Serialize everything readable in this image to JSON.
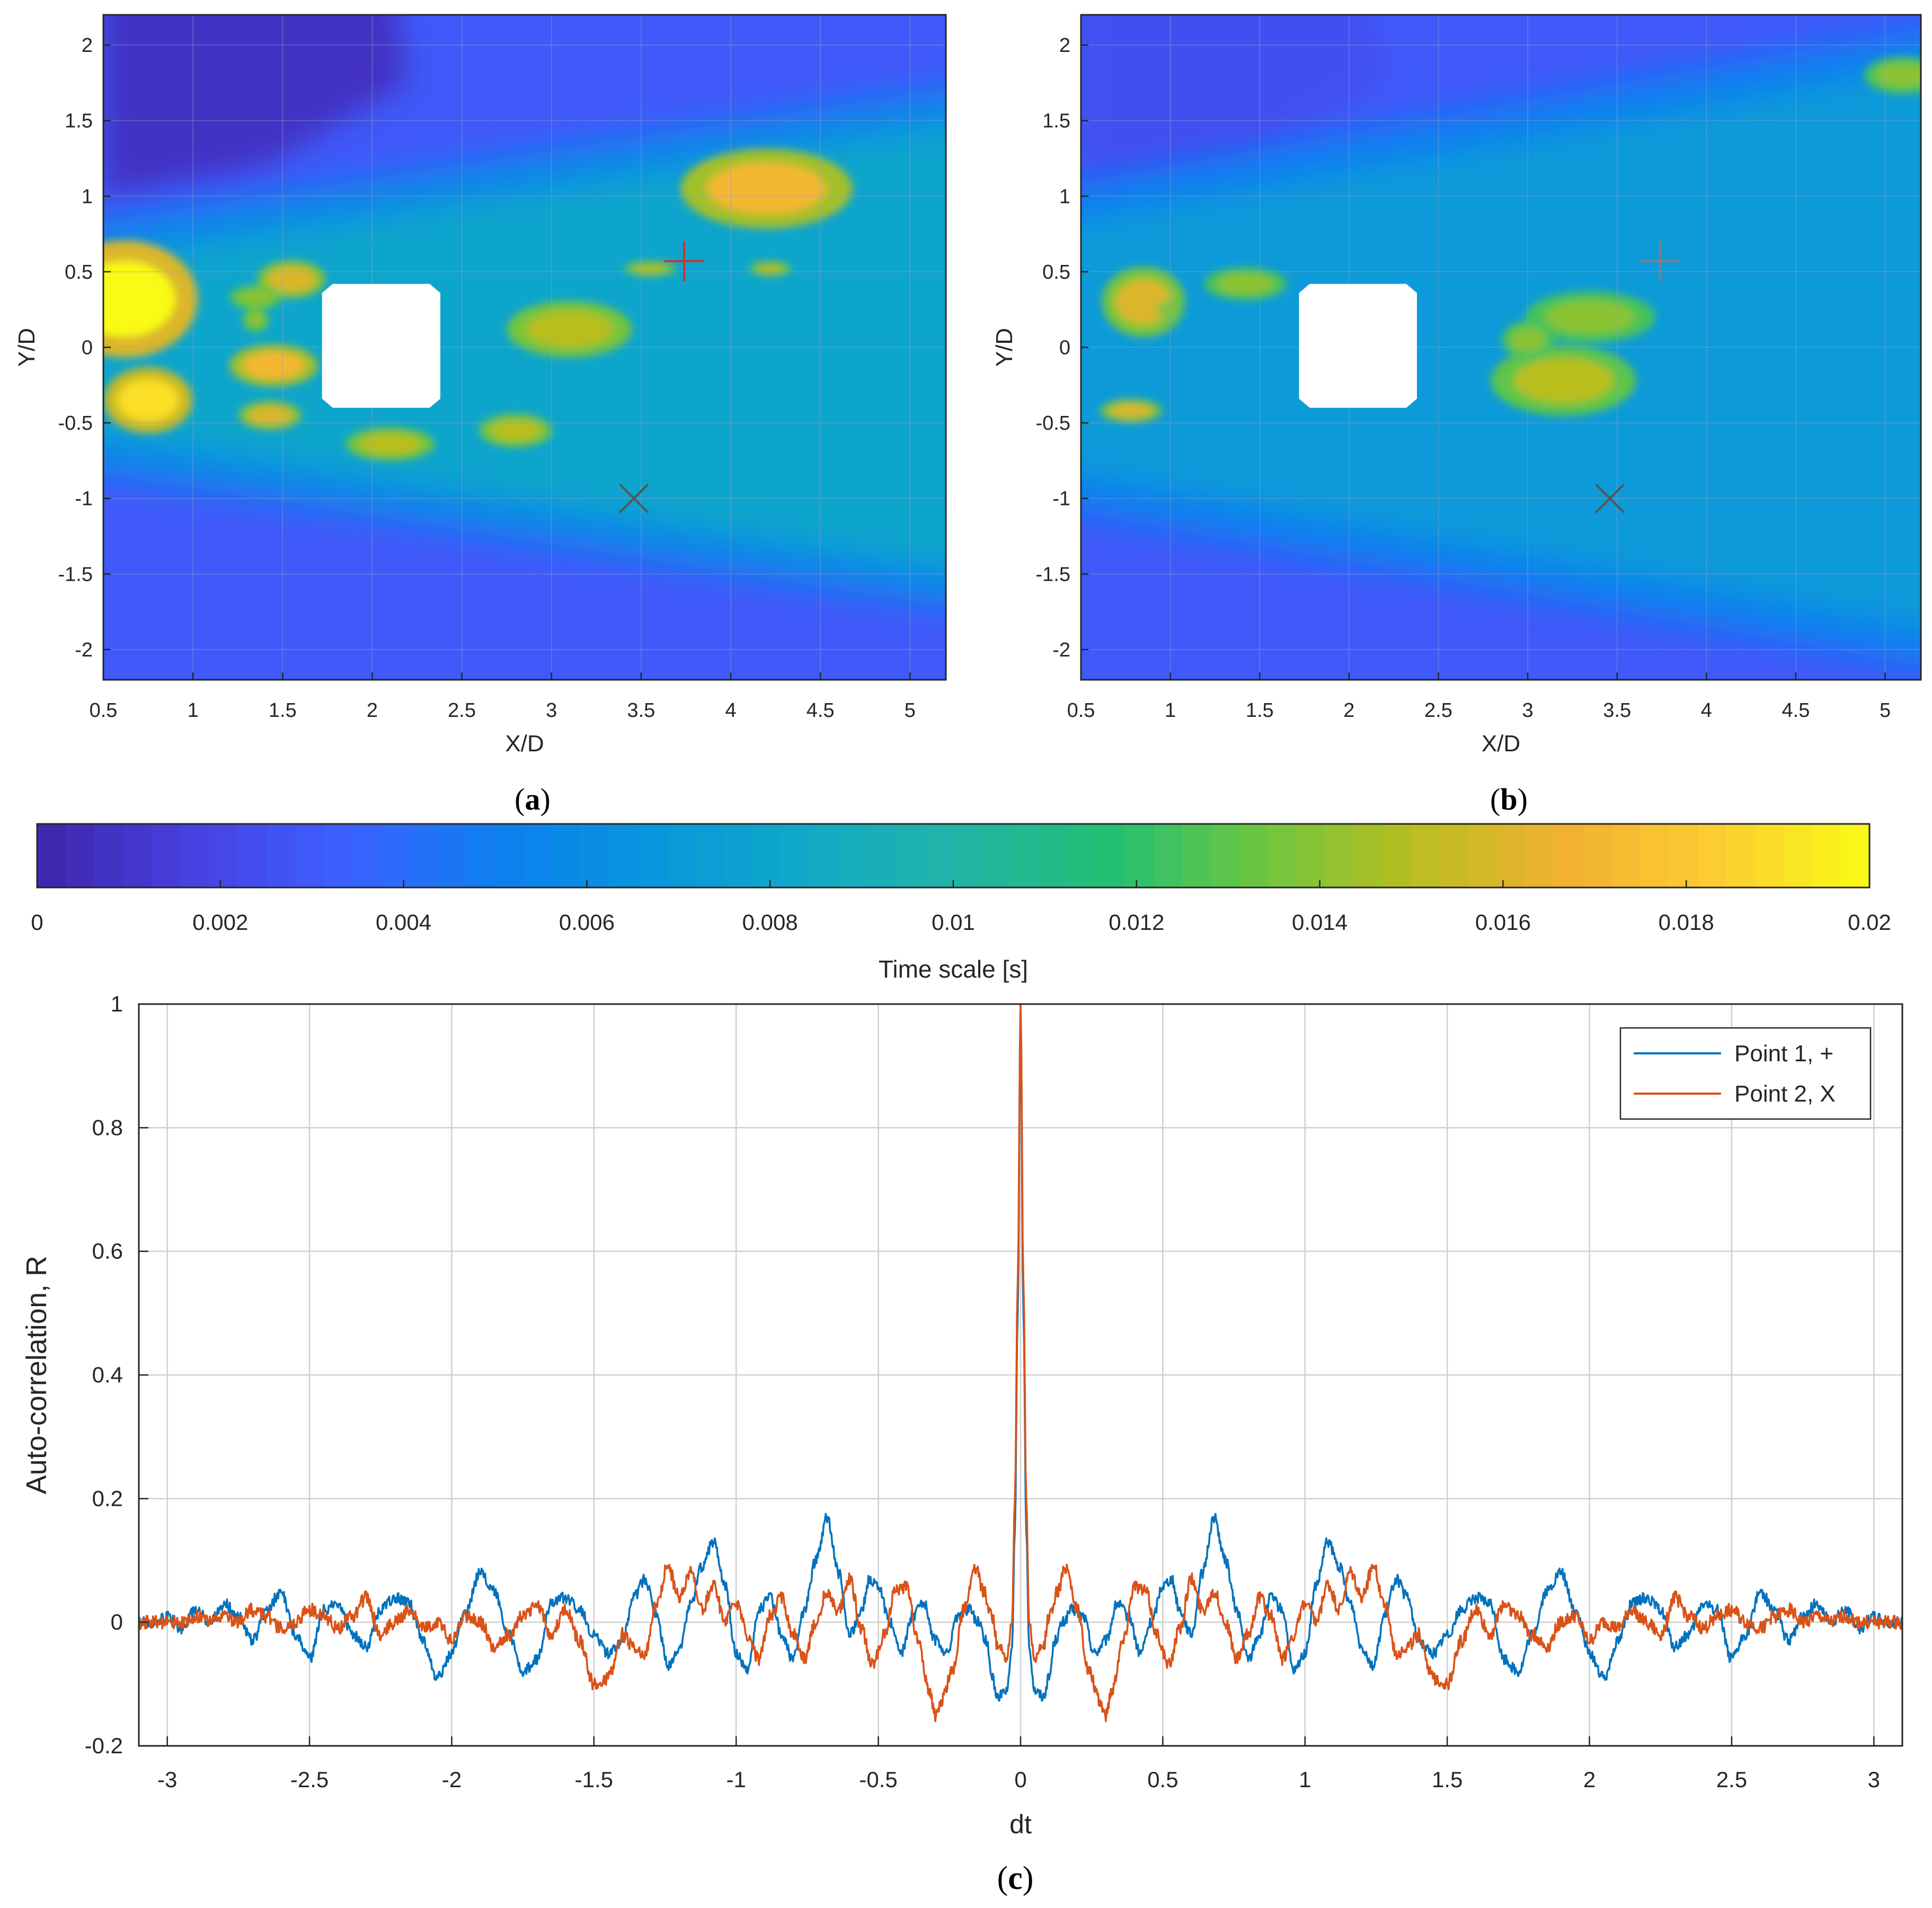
{
  "colors": {
    "point1": "#0072BD",
    "point2": "#D95319",
    "grid": "#d0d0d0",
    "axis": "#262626",
    "colormap": [
      "#3e26a8",
      "#4740e0",
      "#3d60ff",
      "#0d7ff0",
      "#0796dd",
      "#10a9c8",
      "#22b4a8",
      "#21c074",
      "#6cc640",
      "#b9be1f",
      "#f2b12f",
      "#fccd33",
      "#f9fb15"
    ]
  },
  "chart_data": [
    {
      "id": "a",
      "panel_label_pre": "(",
      "panel_label_letter": "a",
      "panel_label_post": ")",
      "type": "heatmap",
      "title": "",
      "xlabel": "X/D",
      "ylabel": "Y/D",
      "xlim": [
        0.5,
        5.2
      ],
      "ylim": [
        -2.2,
        2.2
      ],
      "xticks": [
        0.5,
        1,
        1.5,
        2,
        2.5,
        3,
        3.5,
        4,
        4.5,
        5
      ],
      "xtick_labels": [
        "0.5",
        "1",
        "1.5",
        "2",
        "2.5",
        "3",
        "3.5",
        "4",
        "4.5",
        "5"
      ],
      "yticks": [
        2,
        1.5,
        1,
        0.5,
        0,
        -0.5,
        -1,
        -1.5,
        -2
      ],
      "ytick_labels": [
        "2",
        "1.5",
        "1",
        "0.5",
        "0",
        "-0.5",
        "-1",
        "-1.5",
        "-2"
      ],
      "value_label": "Time scale [s]",
      "wake_half_width_start": 0.55,
      "wake_half_width_end": 1.5,
      "wake_core_value": 0.008,
      "background_value": 0.003,
      "upper_left_value": 0.0008,
      "masked_square": {
        "x_min": 1.72,
        "x_max": 2.38,
        "y_min": -0.4,
        "y_max": 0.42,
        "chamfer": 0.06
      },
      "hotspots": [
        {
          "x": 0.62,
          "y": 0.32,
          "rx": 0.28,
          "ry": 0.25,
          "value": 0.02
        },
        {
          "x": 0.75,
          "y": -0.35,
          "rx": 0.17,
          "ry": 0.14,
          "value": 0.019
        },
        {
          "x": 1.55,
          "y": 0.45,
          "rx": 0.13,
          "ry": 0.08,
          "value": 0.016
        },
        {
          "x": 1.35,
          "y": 0.33,
          "rx": 0.1,
          "ry": 0.05,
          "value": 0.014
        },
        {
          "x": 1.45,
          "y": -0.12,
          "rx": 0.17,
          "ry": 0.09,
          "value": 0.017
        },
        {
          "x": 1.43,
          "y": -0.45,
          "rx": 0.12,
          "ry": 0.06,
          "value": 0.016
        },
        {
          "x": 1.35,
          "y": 0.18,
          "rx": 0.05,
          "ry": 0.05,
          "value": 0.014
        },
        {
          "x": 2.1,
          "y": -0.64,
          "rx": 0.17,
          "ry": 0.07,
          "value": 0.015
        },
        {
          "x": 2.8,
          "y": -0.55,
          "rx": 0.14,
          "ry": 0.07,
          "value": 0.015
        },
        {
          "x": 3.1,
          "y": 0.12,
          "rx": 0.24,
          "ry": 0.12,
          "value": 0.015
        },
        {
          "x": 4.2,
          "y": 1.05,
          "rx": 0.33,
          "ry": 0.17,
          "value": 0.017
        },
        {
          "x": 3.55,
          "y": 0.52,
          "rx": 0.1,
          "ry": 0.03,
          "value": 0.015
        },
        {
          "x": 4.22,
          "y": 0.52,
          "rx": 0.08,
          "ry": 0.03,
          "value": 0.015
        }
      ],
      "markers": [
        {
          "label": "+",
          "x": 3.74,
          "y": 0.57,
          "color": "#cc3333"
        },
        {
          "label": "X",
          "x": 3.46,
          "y": -1.0,
          "color": "#555555"
        }
      ]
    },
    {
      "id": "b",
      "panel_label_pre": "(",
      "panel_label_letter": "b",
      "panel_label_post": ")",
      "type": "heatmap",
      "title": "",
      "xlabel": "X/D",
      "ylabel": "Y/D",
      "xlim": [
        0.5,
        5.2
      ],
      "ylim": [
        -2.2,
        2.2
      ],
      "xticks": [
        0.5,
        1,
        1.5,
        2,
        2.5,
        3,
        3.5,
        4,
        4.5,
        5
      ],
      "xtick_labels": [
        "0.5",
        "1",
        "1.5",
        "2",
        "2.5",
        "3",
        "3.5",
        "4",
        "4.5",
        "5"
      ],
      "yticks": [
        2,
        1.5,
        1,
        0.5,
        0,
        -0.5,
        -1,
        -1.5,
        -2
      ],
      "ytick_labels": [
        "2",
        "1.5",
        "1",
        "0.5",
        "0",
        "-0.5",
        "-1",
        "-1.5",
        "-2"
      ],
      "value_label": "Time scale [s]",
      "wake_half_width_start": 0.8,
      "wake_half_width_end": 1.9,
      "wake_core_value": 0.007,
      "background_value": 0.003,
      "upper_left_value": 0.0025,
      "masked_square": {
        "x_min": 1.72,
        "x_max": 2.38,
        "y_min": -0.4,
        "y_max": 0.42,
        "chamfer": 0.06
      },
      "hotspots": [
        {
          "x": 0.85,
          "y": 0.3,
          "rx": 0.16,
          "ry": 0.15,
          "value": 0.016
        },
        {
          "x": 0.78,
          "y": -0.42,
          "rx": 0.12,
          "ry": 0.05,
          "value": 0.016
        },
        {
          "x": 1.42,
          "y": 0.42,
          "rx": 0.16,
          "ry": 0.07,
          "value": 0.014
        },
        {
          "x": 1.0,
          "y": 0.25,
          "rx": 0.05,
          "ry": 0.04,
          "value": 0.014
        },
        {
          "x": 3.2,
          "y": -0.22,
          "rx": 0.28,
          "ry": 0.15,
          "value": 0.015
        },
        {
          "x": 3.35,
          "y": 0.2,
          "rx": 0.25,
          "ry": 0.11,
          "value": 0.014
        },
        {
          "x": 3.0,
          "y": 0.05,
          "rx": 0.1,
          "ry": 0.08,
          "value": 0.014
        },
        {
          "x": 5.1,
          "y": 1.8,
          "rx": 0.15,
          "ry": 0.08,
          "value": 0.014
        }
      ],
      "markers": [
        {
          "label": "+",
          "x": 3.74,
          "y": 0.57,
          "color": "#808080"
        },
        {
          "label": "X",
          "x": 3.46,
          "y": -1.0,
          "color": "#555555"
        }
      ]
    },
    {
      "id": "colorbar",
      "type": "colorbar",
      "label": "Time scale [s]",
      "limits": [
        0,
        0.02
      ],
      "ticks": [
        0,
        0.002,
        0.004,
        0.006,
        0.008,
        0.01,
        0.012,
        0.014,
        0.016,
        0.018,
        0.02
      ],
      "tick_labels": [
        "0",
        "0.002",
        "0.004",
        "0.006",
        "0.008",
        "0.01",
        "0.012",
        "0.014",
        "0.016",
        "0.018",
        "0.02"
      ]
    },
    {
      "id": "c",
      "panel_label_pre": "(",
      "panel_label_letter": "c",
      "panel_label_post": ")",
      "type": "line",
      "title": "",
      "xlabel": "dt",
      "ylabel": "Auto-correlation, R",
      "xlim": [
        -3.1,
        3.1
      ],
      "ylim": [
        -0.2,
        1
      ],
      "xticks": [
        -3,
        -2.5,
        -2,
        -1.5,
        -1,
        -0.5,
        0,
        0.5,
        1,
        1.5,
        2,
        2.5,
        3
      ],
      "xtick_labels": [
        "-3",
        "-2.5",
        "-2",
        "-1.5",
        "-1",
        "-0.5",
        "0",
        "0.5",
        "1",
        "1.5",
        "2",
        "2.5",
        "3"
      ],
      "yticks": [
        -0.2,
        0,
        0.2,
        0.4,
        0.6,
        0.8,
        1
      ],
      "ytick_labels": [
        "-0.2",
        "0",
        "0.2",
        "0.4",
        "0.6",
        "0.8",
        "1"
      ],
      "grid": true,
      "legend_position": "top-right",
      "symmetric": true,
      "series": [
        {
          "name": "Point 1, +",
          "color": "#0072BD",
          "peak": 1.0,
          "noise": 0.009,
          "x": [
            0,
            0.01,
            0.02,
            0.03,
            0.05,
            0.08,
            0.1,
            0.12,
            0.15,
            0.18,
            0.22,
            0.26,
            0.3,
            0.34,
            0.38,
            0.42,
            0.46,
            0.5,
            0.53,
            0.56,
            0.6,
            0.64,
            0.68,
            0.72,
            0.76,
            0.8,
            0.84,
            0.88,
            0.92,
            0.96,
            1.0,
            1.04,
            1.08,
            1.12,
            1.16,
            1.2,
            1.24,
            1.28,
            1.32,
            1.36,
            1.4,
            1.45,
            1.5,
            1.55,
            1.6,
            1.65,
            1.7,
            1.75,
            1.8,
            1.85,
            1.9,
            1.95,
            2.0,
            2.05,
            2.1,
            2.15,
            2.2,
            2.25,
            2.3,
            2.35,
            2.4,
            2.45,
            2.5,
            2.55,
            2.6,
            2.65,
            2.7,
            2.75,
            2.8,
            2.85,
            2.9,
            2.95,
            3.0,
            3.05,
            3.1
          ],
          "y": [
            1.0,
            0.5,
            0.15,
            -0.04,
            -0.11,
            -0.12,
            -0.09,
            -0.03,
            0.0,
            0.02,
            0.01,
            -0.05,
            -0.03,
            0.03,
            0.01,
            -0.05,
            0.0,
            0.06,
            0.07,
            0.02,
            -0.02,
            0.08,
            0.17,
            0.1,
            0.02,
            -0.06,
            -0.02,
            0.04,
            0.02,
            -0.08,
            -0.05,
            0.06,
            0.13,
            0.09,
            0.03,
            -0.04,
            -0.07,
            0.01,
            0.07,
            0.04,
            -0.03,
            -0.05,
            -0.02,
            0.02,
            0.04,
            0.03,
            -0.06,
            -0.08,
            -0.02,
            0.05,
            0.08,
            0.02,
            -0.05,
            -0.09,
            -0.03,
            0.03,
            0.04,
            0.02,
            -0.04,
            -0.02,
            0.03,
            0.02,
            -0.06,
            -0.02,
            0.05,
            0.02,
            -0.03,
            0.01,
            0.03,
            0.0,
            0.02,
            -0.01,
            0.01,
            0.0,
            0.0
          ]
        },
        {
          "name": "Point 2, X",
          "color": "#D95319",
          "peak": 1.0,
          "noise": 0.011,
          "x": [
            0,
            0.01,
            0.02,
            0.03,
            0.05,
            0.08,
            0.1,
            0.13,
            0.16,
            0.2,
            0.24,
            0.28,
            0.3,
            0.32,
            0.36,
            0.4,
            0.44,
            0.48,
            0.52,
            0.56,
            0.6,
            0.64,
            0.68,
            0.72,
            0.76,
            0.8,
            0.84,
            0.88,
            0.92,
            0.96,
            1.0,
            1.04,
            1.08,
            1.12,
            1.16,
            1.2,
            1.24,
            1.28,
            1.32,
            1.36,
            1.4,
            1.45,
            1.5,
            1.55,
            1.6,
            1.65,
            1.7,
            1.75,
            1.8,
            1.85,
            1.9,
            1.95,
            2.0,
            2.05,
            2.1,
            2.15,
            2.2,
            2.25,
            2.3,
            2.35,
            2.4,
            2.45,
            2.5,
            2.55,
            2.6,
            2.65,
            2.7,
            2.75,
            2.8,
            2.85,
            2.9,
            2.95,
            3.0,
            3.05,
            3.1
          ],
          "y": [
            1.0,
            0.55,
            0.2,
            0.0,
            -0.06,
            -0.04,
            0.01,
            0.05,
            0.09,
            0.02,
            -0.08,
            -0.13,
            -0.15,
            -0.11,
            -0.03,
            0.06,
            0.05,
            -0.02,
            -0.07,
            -0.01,
            0.07,
            0.02,
            0.05,
            0.0,
            -0.06,
            -0.02,
            0.04,
            0.01,
            -0.06,
            -0.02,
            0.03,
            0.0,
            0.06,
            0.02,
            0.08,
            0.04,
            0.09,
            0.03,
            -0.05,
            -0.04,
            -0.02,
            -0.09,
            -0.1,
            -0.03,
            0.02,
            -0.02,
            0.03,
            0.01,
            -0.02,
            -0.04,
            0.0,
            0.01,
            -0.03,
            0.0,
            -0.01,
            0.02,
            0.0,
            -0.02,
            0.04,
            0.01,
            -0.01,
            0.01,
            0.02,
            0.0,
            -0.01,
            0.01,
            0.02,
            0.0,
            0.01,
            0.0,
            0.01,
            0.0,
            0.0,
            0.0,
            0.0
          ]
        }
      ]
    }
  ]
}
